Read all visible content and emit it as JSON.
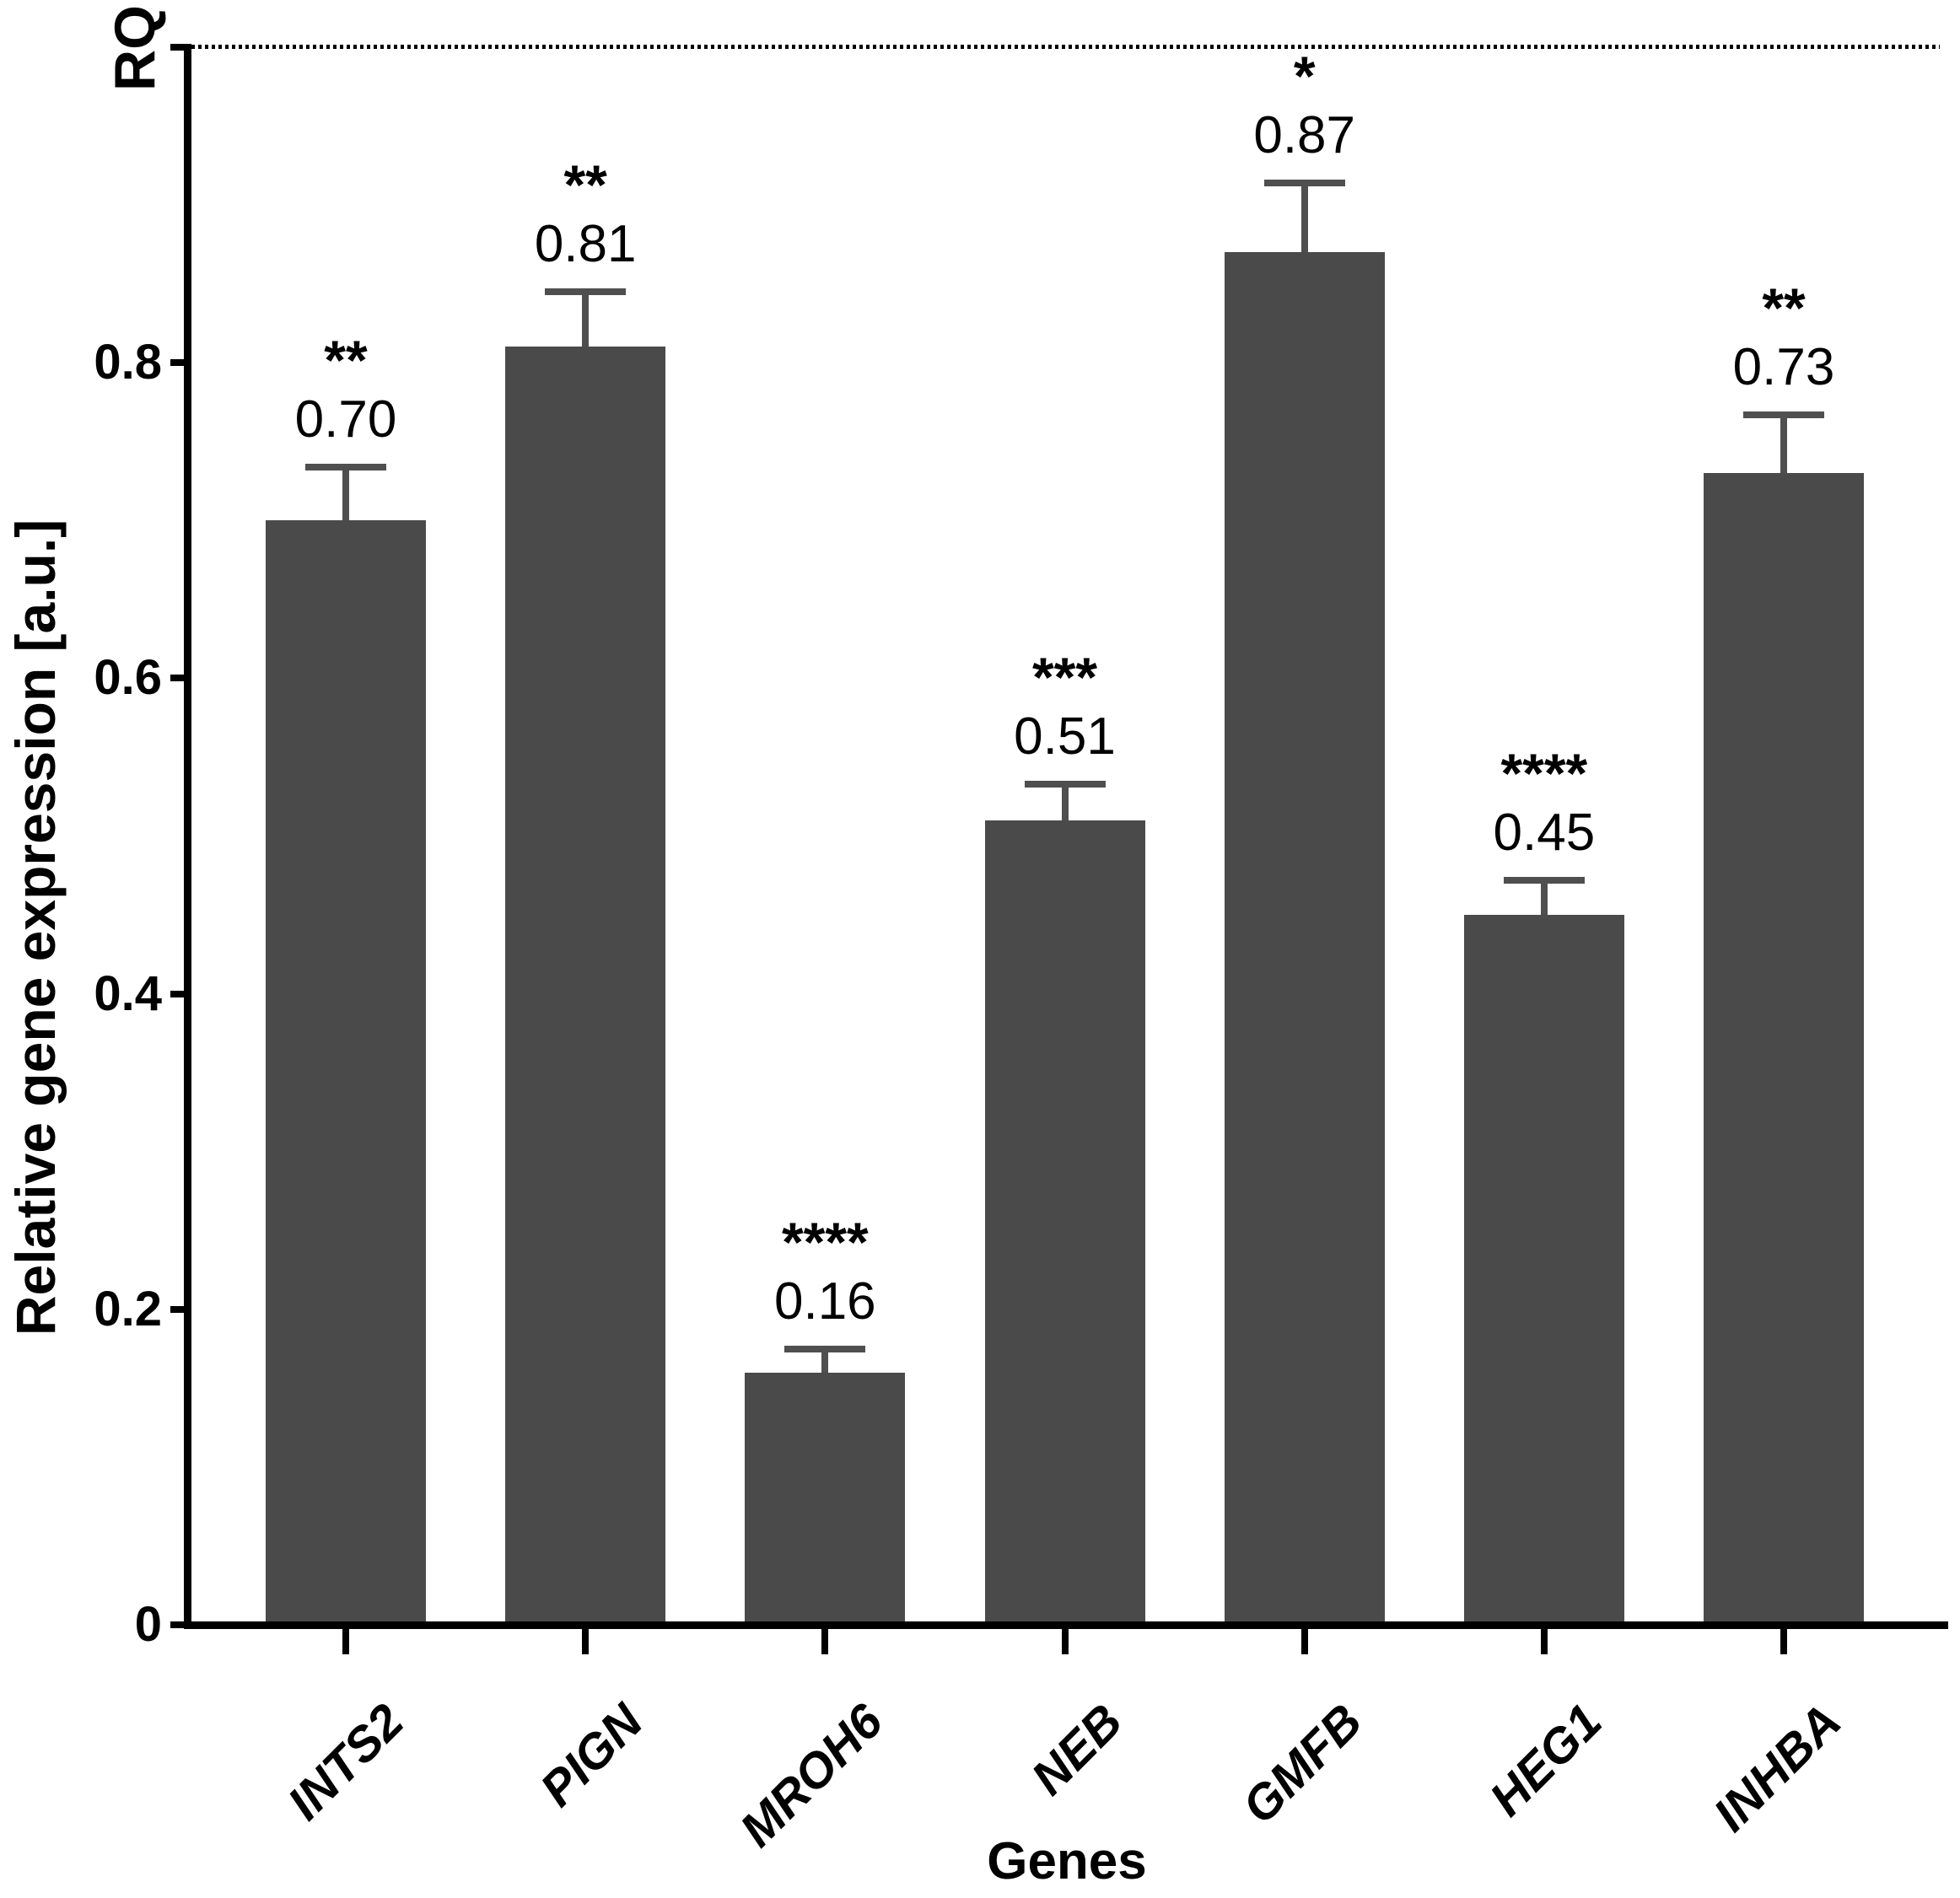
{
  "chart_data": {
    "type": "bar",
    "title": "",
    "xlabel": "Genes",
    "ylabel": "Relative gene expression [a.u.]",
    "ylim": [
      0,
      1.0
    ],
    "yticks": [
      0,
      0.2,
      0.4,
      0.6,
      0.8
    ],
    "ytick_labels": [
      "0",
      "0.2",
      "0.4",
      "0.6",
      "0.8"
    ],
    "top_reference": {
      "label": "RQ",
      "value": 1.0,
      "line_style": "dotted"
    },
    "categories": [
      "INTS2",
      "PIGN",
      "MROH6",
      "NEB",
      "GMFB",
      "HEG1",
      "INHBA"
    ],
    "values": [
      0.7,
      0.81,
      0.16,
      0.51,
      0.87,
      0.45,
      0.73
    ],
    "value_labels": [
      "0.70",
      "0.81",
      "0.16",
      "0.51",
      "0.87",
      "0.45",
      "0.73"
    ],
    "errors_plus": [
      0.034,
      0.035,
      0.015,
      0.023,
      0.044,
      0.022,
      0.037
    ],
    "significance": [
      "**",
      "**",
      "****",
      "***",
      "*",
      "****",
      "**"
    ],
    "bar_color": "#4A4A4A",
    "error_bar_color": "#4F4F4F",
    "axis_color": "#000000",
    "grid": false,
    "legend": null
  }
}
